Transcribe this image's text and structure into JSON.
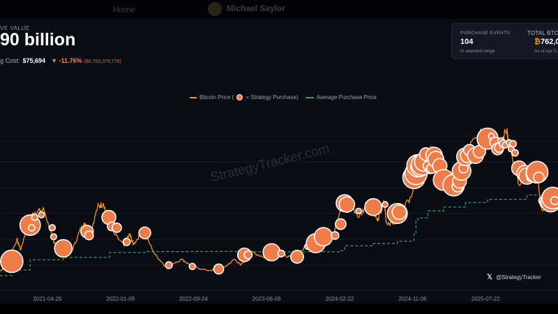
{
  "topbar": {
    "home": "Home",
    "user": "Michael Saylor"
  },
  "header": {
    "label": "VE VALUE",
    "value": "90 billion",
    "cost_label": "g Cost:",
    "cost": "$75,694",
    "change_pct": "-11.76%",
    "change_amt": "($6,763,379,776)",
    "down_color": "#f08a55"
  },
  "card": {
    "events_title": "PURCHASE EVENTS",
    "events_value": "104",
    "events_sub": "in selected range",
    "total_title": "TOTAL BTC",
    "total_value": "762,0",
    "total_sub": "As of Apr 5,",
    "btc_icon": "bitcoin-icon"
  },
  "watermark": "StrategyTracker.com",
  "handle": {
    "icon": "x-logo-icon",
    "text": "@StrategyTracker"
  },
  "chart_data": {
    "type": "line",
    "title": "",
    "xlabel": "",
    "ylabel": "",
    "ylim": [
      0,
      140000
    ],
    "grid": true,
    "legend_placement": "top-center",
    "legend": [
      "Bitcoin Price (",
      "= Strategy Purchase)",
      "Average Purchase Price"
    ],
    "x_ticks": [
      "2021-04-26",
      "2022-01-09",
      "2022-09-24",
      "2023-06-09",
      "2024-02-22",
      "2024-11-06",
      "2025-07-22"
    ],
    "colors": {
      "price": "#f7931a",
      "purchase": "#f07c4a",
      "average": "#3a9a6a"
    },
    "price_series": [
      [
        "2020-11-09",
        15500
      ],
      [
        "2020-12-01",
        19000
      ],
      [
        "2021-01-08",
        40000
      ],
      [
        "2021-01-22",
        32000
      ],
      [
        "2021-02-21",
        57000
      ],
      [
        "2021-03-13",
        61000
      ],
      [
        "2021-04-14",
        63000
      ],
      [
        "2021-05-19",
        37000
      ],
      [
        "2021-06-22",
        32000
      ],
      [
        "2021-07-20",
        30000
      ],
      [
        "2021-08-23",
        49000
      ],
      [
        "2021-09-07",
        52000
      ],
      [
        "2021-09-21",
        41000
      ],
      [
        "2021-10-20",
        65000
      ],
      [
        "2021-11-10",
        68000
      ],
      [
        "2021-12-04",
        48000
      ],
      [
        "2022-01-22",
        35000
      ],
      [
        "2022-02-10",
        44000
      ],
      [
        "2022-02-24",
        36000
      ],
      [
        "2022-03-29",
        47000
      ],
      [
        "2022-05-12",
        28000
      ],
      [
        "2022-06-18",
        19000
      ],
      [
        "2022-08-14",
        24500
      ],
      [
        "2022-09-20",
        19000
      ],
      [
        "2022-11-09",
        16000
      ],
      [
        "2022-12-31",
        16500
      ],
      [
        "2023-02-16",
        24500
      ],
      [
        "2023-03-10",
        20000
      ],
      [
        "2023-04-14",
        30500
      ],
      [
        "2023-06-15",
        25000
      ],
      [
        "2023-07-13",
        31000
      ],
      [
        "2023-09-11",
        25000
      ],
      [
        "2023-10-24",
        34000
      ],
      [
        "2023-12-08",
        44000
      ],
      [
        "2024-01-23",
        39000
      ],
      [
        "2024-03-14",
        73000
      ],
      [
        "2024-05-01",
        57000
      ],
      [
        "2024-06-07",
        71000
      ],
      [
        "2024-07-05",
        54000
      ],
      [
        "2024-07-29",
        69000
      ],
      [
        "2024-08-05",
        53000
      ],
      [
        "2024-09-06",
        53000
      ],
      [
        "2024-10-29",
        73000
      ],
      [
        "2024-12-17",
        107000
      ],
      [
        "2025-01-20",
        109000
      ],
      [
        "2025-02-28",
        79000
      ],
      [
        "2025-04-08",
        76000
      ],
      [
        "2025-05-22",
        111000
      ],
      [
        "2025-07-14",
        123000
      ],
      [
        "2025-08-14",
        124000
      ],
      [
        "2025-09-01",
        108000
      ],
      [
        "2025-10-06",
        126000
      ],
      [
        "2025-10-10",
        112000
      ],
      [
        "2025-11-21",
        82000
      ],
      [
        "2026-01-14",
        97000
      ],
      [
        "2026-02-05",
        63000
      ],
      [
        "2026-03-15",
        72000
      ],
      [
        "2026-04-04",
        68000
      ]
    ],
    "average_series": [
      [
        "2020-11-09",
        11900
      ],
      [
        "2020-12-21",
        16200
      ],
      [
        "2021-02-24",
        24200
      ],
      [
        "2021-06-21",
        26000
      ],
      [
        "2021-12-01",
        29800
      ],
      [
        "2022-04-05",
        30500
      ],
      [
        "2022-09-20",
        30600
      ],
      [
        "2023-03-23",
        30400
      ],
      [
        "2024-02-26",
        31200
      ],
      [
        "2024-03-11",
        35000
      ],
      [
        "2024-06-20",
        36800
      ],
      [
        "2024-09-13",
        38600
      ],
      [
        "2024-11-11",
        45000
      ],
      [
        "2024-11-18",
        55000
      ],
      [
        "2024-11-25",
        56700
      ],
      [
        "2024-12-30",
        62000
      ],
      [
        "2025-02-24",
        65000
      ],
      [
        "2025-05-12",
        68500
      ],
      [
        "2025-07-29",
        71000
      ],
      [
        "2025-12-15",
        74400
      ],
      [
        "2026-03-16",
        75694
      ]
    ],
    "purchases": [
      [
        "2020-12-21",
        23000,
        29646
      ],
      [
        "2021-02-24",
        51000,
        19452
      ],
      [
        "2021-03-01",
        49000,
        328
      ],
      [
        "2021-03-12",
        57000,
        262
      ],
      [
        "2021-04-05",
        59000,
        253
      ],
      [
        "2021-05-13",
        49000,
        271
      ],
      [
        "2021-05-18",
        42000,
        229
      ],
      [
        "2021-06-21",
        33000,
        13005
      ],
      [
        "2021-09-13",
        46000,
        5050
      ],
      [
        "2021-09-20",
        43000,
        1500
      ],
      [
        "2021-11-29",
        57000,
        7002
      ],
      [
        "2021-12-09",
        50000,
        1434
      ],
      [
        "2021-12-27",
        49000,
        1914
      ],
      [
        "2022-01-31",
        38000,
        660
      ],
      [
        "2022-04-05",
        45000,
        4167
      ],
      [
        "2022-06-29",
        20000,
        480
      ],
      [
        "2022-09-20",
        19000,
        301
      ],
      [
        "2022-12-22",
        17000,
        2395
      ],
      [
        "2023-03-23",
        28000,
        6455
      ],
      [
        "2023-04-05",
        28000,
        1045
      ],
      [
        "2023-06-27",
        30000,
        12333
      ],
      [
        "2023-07-31",
        29000,
        467
      ],
      [
        "2023-09-25",
        26500,
        5445
      ],
      [
        "2023-11-01",
        34500,
        155
      ],
      [
        "2023-11-30",
        37000,
        16130
      ],
      [
        "2023-12-27",
        42000,
        14620
      ],
      [
        "2024-02-06",
        43000,
        850
      ],
      [
        "2024-02-26",
        51800,
        3000
      ],
      [
        "2024-03-11",
        68000,
        12000
      ],
      [
        "2024-03-19",
        67000,
        9245
      ],
      [
        "2024-04-29",
        62000,
        122
      ],
      [
        "2024-06-20",
        65000,
        11931
      ],
      [
        "2024-08-01",
        67000,
        169
      ],
      [
        "2024-09-13",
        60000,
        18300
      ],
      [
        "2024-09-20",
        61000,
        7420
      ],
      [
        "2024-11-11",
        88000,
        27200
      ],
      [
        "2024-11-18",
        91000,
        51780
      ],
      [
        "2024-11-25",
        97000,
        55500
      ],
      [
        "2024-12-02",
        96000,
        15400
      ],
      [
        "2024-12-09",
        98000,
        21550
      ],
      [
        "2024-12-16",
        100000,
        15350
      ],
      [
        "2024-12-23",
        106000,
        5262
      ],
      [
        "2024-12-30",
        97000,
        2138
      ],
      [
        "2025-01-06",
        94000,
        1070
      ],
      [
        "2025-01-13",
        95000,
        2530
      ],
      [
        "2025-01-21",
        105000,
        11000
      ],
      [
        "2025-01-27",
        102000,
        10107
      ],
      [
        "2025-02-10",
        97000,
        7633
      ],
      [
        "2025-02-24",
        86000,
        20356
      ],
      [
        "2025-03-17",
        83000,
        130
      ],
      [
        "2025-03-24",
        84000,
        6911
      ],
      [
        "2025-03-31",
        82000,
        22048
      ],
      [
        "2025-04-14",
        81000,
        3459
      ],
      [
        "2025-04-21",
        85000,
        6556
      ],
      [
        "2025-04-28",
        93000,
        15355
      ],
      [
        "2025-05-05",
        95000,
        1895
      ],
      [
        "2025-05-12",
        104000,
        13390
      ],
      [
        "2025-05-19",
        105000,
        7390
      ],
      [
        "2025-05-26",
        109000,
        4020
      ],
      [
        "2025-06-02",
        106000,
        705
      ],
      [
        "2025-06-16",
        105000,
        10100
      ],
      [
        "2025-06-23",
        106000,
        245
      ],
      [
        "2025-06-30",
        108000,
        4980
      ],
      [
        "2025-07-14",
        119000,
        4225
      ],
      [
        "2025-07-29",
        118000,
        21021
      ],
      [
        "2025-08-11",
        120000,
        155
      ],
      [
        "2025-08-18",
        116000,
        430
      ],
      [
        "2025-08-25",
        115000,
        3081
      ],
      [
        "2025-09-02",
        110000,
        4048
      ],
      [
        "2025-09-08",
        111000,
        1955
      ],
      [
        "2025-09-15",
        116000,
        525
      ],
      [
        "2025-09-22",
        114000,
        850
      ],
      [
        "2025-09-29",
        113000,
        196
      ],
      [
        "2025-10-13",
        115000,
        220
      ],
      [
        "2025-10-20",
        110000,
        168
      ],
      [
        "2025-10-27",
        114000,
        390
      ],
      [
        "2025-11-03",
        107000,
        397
      ],
      [
        "2025-11-17",
        95000,
        8178
      ],
      [
        "2025-12-01",
        87000,
        130
      ],
      [
        "2025-12-08",
        91000,
        10624
      ],
      [
        "2025-12-15",
        89000,
        10645
      ],
      [
        "2025-12-29",
        88000,
        1229
      ],
      [
        "2026-01-05",
        93000,
        1287
      ],
      [
        "2026-01-12",
        91000,
        13627
      ],
      [
        "2026-01-20",
        92000,
        22305
      ],
      [
        "2026-01-26",
        88000,
        2932
      ],
      [
        "2026-02-09",
        70000,
        1142
      ],
      [
        "2026-02-17",
        68000,
        2486
      ],
      [
        "2026-02-23",
        66000,
        592
      ],
      [
        "2026-03-02",
        68000,
        3015
      ],
      [
        "2026-03-09",
        69000,
        17994
      ],
      [
        "2026-03-16",
        72000,
        22337
      ],
      [
        "2026-03-23",
        70000,
        1031
      ]
    ]
  }
}
